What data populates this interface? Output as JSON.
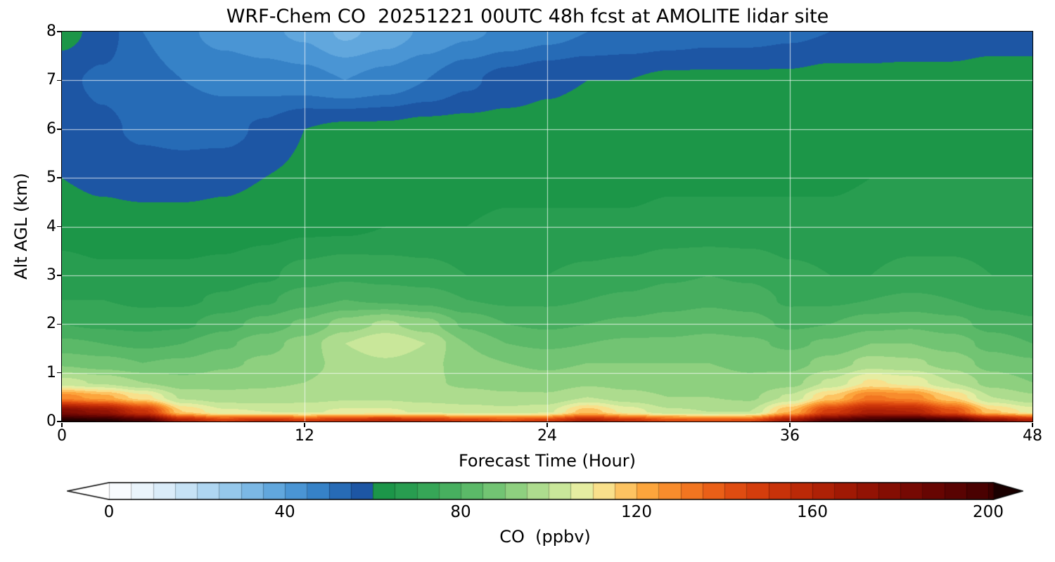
{
  "figure": {
    "background": "#ffffff"
  },
  "chart_data": {
    "type": "heatmap",
    "title": "WRF-Chem CO  20251221 00UTC 48h fcst at AMOLITE lidar site",
    "xlabel": "Forecast Time (Hour)",
    "ylabel": "Alt AGL (km)",
    "colorbar_label": "CO  (ppbv)",
    "x_range": [
      0,
      48
    ],
    "y_range": [
      0,
      8
    ],
    "x_ticks": [
      0,
      12,
      24,
      36,
      48
    ],
    "y_ticks": [
      0,
      1,
      2,
      3,
      4,
      5,
      6,
      7,
      8
    ],
    "colorbar_ticks": [
      0,
      40,
      80,
      120,
      160,
      200
    ],
    "colorbar_range": [
      -10,
      212
    ],
    "contour_interval_ppbv": 5,
    "grid": true,
    "gridline_color": "rgba(255,255,255,0.75)",
    "units": {
      "x": "hour",
      "y": "km",
      "value": "ppbv"
    },
    "x_hours": [
      0,
      2,
      4,
      6,
      8,
      10,
      12,
      14,
      16,
      18,
      20,
      22,
      24,
      26,
      28,
      30,
      32,
      34,
      36,
      38,
      40,
      42,
      44,
      46,
      48
    ],
    "altitudes_km": [
      0,
      0.2,
      0.5,
      0.8,
      1.2,
      1.6,
      2,
      2.5,
      3,
      4,
      5,
      6,
      7,
      8
    ],
    "values_ppbv": [
      [
        212,
        210,
        200,
        165,
        150,
        158,
        150,
        155,
        160,
        155,
        150,
        145,
        150,
        165,
        155,
        145,
        142,
        145,
        170,
        195,
        205,
        210,
        205,
        180,
        165
      ],
      [
        180,
        172,
        152,
        115,
        106,
        105,
        104,
        106,
        106,
        104,
        103,
        102,
        104,
        118,
        108,
        101,
        100,
        100,
        120,
        148,
        162,
        160,
        142,
        116,
        108
      ],
      [
        128,
        122,
        112,
        99,
        97,
        97,
        98,
        99,
        99,
        98,
        97,
        96,
        96,
        100,
        97,
        95,
        95,
        94,
        101,
        116,
        131,
        128,
        115,
        100,
        96
      ],
      [
        102,
        99,
        95,
        92,
        93,
        94,
        95,
        97,
        97,
        96,
        94,
        93,
        92,
        94,
        93,
        92,
        92,
        91,
        93,
        101,
        111,
        108,
        100,
        93,
        90
      ],
      [
        89,
        87,
        85,
        86,
        89,
        91,
        93,
        97,
        99,
        97,
        92,
        90,
        89,
        90,
        90,
        90,
        90,
        89,
        88,
        92,
        97,
        96,
        93,
        88,
        86
      ],
      [
        81,
        80,
        79,
        80,
        84,
        88,
        92,
        100,
        105,
        100,
        90,
        85,
        84,
        85,
        86,
        86,
        87,
        86,
        84,
        86,
        90,
        90,
        88,
        83,
        80
      ],
      [
        75,
        74,
        73,
        74,
        78,
        82,
        86,
        92,
        96,
        92,
        84,
        80,
        79,
        80,
        81,
        82,
        83,
        82,
        79,
        80,
        83,
        84,
        82,
        78,
        76
      ],
      [
        70,
        70,
        69,
        69,
        71,
        74,
        78,
        80,
        79,
        78,
        75,
        74,
        74,
        75,
        76,
        78,
        79,
        78,
        74,
        74,
        75,
        76,
        75,
        73,
        72
      ],
      [
        67,
        66,
        66,
        66,
        67,
        69,
        72,
        74,
        73,
        72,
        70,
        70,
        70,
        71,
        72,
        74,
        75,
        74,
        71,
        70,
        70,
        71,
        71,
        70,
        70
      ],
      [
        63,
        62,
        62,
        62,
        62,
        63,
        64,
        64,
        65,
        65,
        65,
        66,
        66,
        66,
        66,
        67,
        67,
        67,
        67,
        67,
        68,
        68,
        68,
        68,
        68
      ],
      [
        60,
        59,
        58,
        58,
        59,
        60,
        61,
        61,
        62,
        62,
        62,
        63,
        63,
        63,
        63,
        64,
        64,
        64,
        64,
        64,
        65,
        65,
        65,
        65,
        65
      ],
      [
        58,
        56,
        54,
        53,
        53,
        56,
        60,
        61,
        61,
        62,
        62,
        62,
        62,
        63,
        63,
        63,
        63,
        63,
        63,
        64,
        64,
        64,
        64,
        64,
        64
      ],
      [
        56,
        54,
        52,
        50,
        49,
        48,
        47,
        45,
        47,
        50,
        54,
        57,
        59,
        60,
        60,
        61,
        61,
        61,
        61,
        62,
        62,
        62,
        62,
        63,
        63
      ],
      [
        62,
        58,
        50,
        46,
        43,
        41,
        39,
        34,
        37,
        41,
        44,
        46,
        48,
        50,
        51,
        52,
        53,
        53,
        54,
        55,
        55,
        56,
        56,
        57,
        57
      ]
    ],
    "colormap_stops": [
      [
        -10,
        "#ffffff"
      ],
      [
        0,
        "#ffffff"
      ],
      [
        6,
        "#eef6fc"
      ],
      [
        12,
        "#dcedf9"
      ],
      [
        18,
        "#c4e1f5"
      ],
      [
        24,
        "#a8d2ef"
      ],
      [
        30,
        "#88c0e8"
      ],
      [
        36,
        "#68ace0"
      ],
      [
        42,
        "#4c97d5"
      ],
      [
        48,
        "#3480c6"
      ],
      [
        53,
        "#2569b4"
      ],
      [
        58,
        "#1c54a2"
      ],
      [
        60,
        "#169245"
      ],
      [
        70,
        "#2ea153"
      ],
      [
        80,
        "#4fb363"
      ],
      [
        88,
        "#74c574"
      ],
      [
        94,
        "#97d383"
      ],
      [
        100,
        "#bce295"
      ],
      [
        106,
        "#dceda2"
      ],
      [
        110,
        "#f3ec9f"
      ],
      [
        114,
        "#fdd97f"
      ],
      [
        118,
        "#fdc05d"
      ],
      [
        122,
        "#fca73e"
      ],
      [
        128,
        "#f88a2a"
      ],
      [
        134,
        "#f06e1d"
      ],
      [
        140,
        "#e55413"
      ],
      [
        146,
        "#d7400d"
      ],
      [
        152,
        "#c93309"
      ],
      [
        158,
        "#ba2807"
      ],
      [
        164,
        "#aa1e05"
      ],
      [
        170,
        "#991604"
      ],
      [
        176,
        "#880f03"
      ],
      [
        182,
        "#770903"
      ],
      [
        188,
        "#660502"
      ],
      [
        194,
        "#550202"
      ],
      [
        200,
        "#420101"
      ],
      [
        206,
        "#2e0000"
      ],
      [
        212,
        "#1a0000"
      ]
    ]
  }
}
